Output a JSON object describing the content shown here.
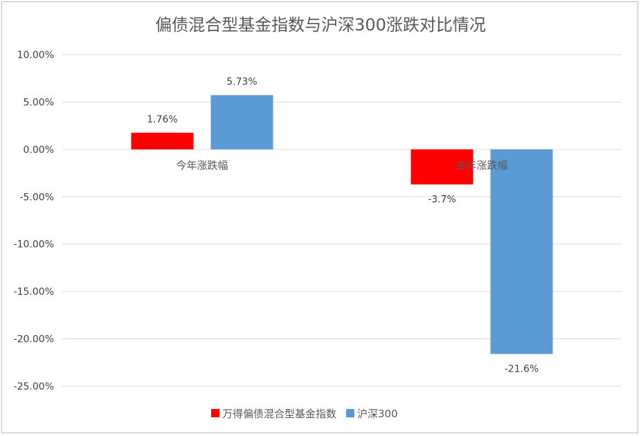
{
  "chart_data": {
    "type": "bar",
    "title": "偏债混合型基金指数与沪深300涨跌对比情况",
    "categories": [
      "今年涨跌幅",
      "去年涨跌幅"
    ],
    "series": [
      {
        "name": "万得偏债混合型基金指数",
        "color": "#ff0000",
        "values": [
          1.76,
          -3.7
        ],
        "labels": [
          "1.76%",
          "-3.7%"
        ]
      },
      {
        "name": "沪深300",
        "color": "#5b9bd5",
        "values": [
          5.73,
          -21.6
        ],
        "labels": [
          "5.73%",
          "-21.6%"
        ]
      }
    ],
    "ylim": [
      -25,
      10
    ],
    "yticks": [
      10,
      5,
      0,
      -5,
      -10,
      -15,
      -20,
      -25
    ],
    "ytick_labels": [
      "10.00%",
      "5.00%",
      "0.00%",
      "-5.00%",
      "-10.00%",
      "-15.00%",
      "-20.00%",
      "-25.00%"
    ],
    "grid": true,
    "legend": "bottom"
  }
}
